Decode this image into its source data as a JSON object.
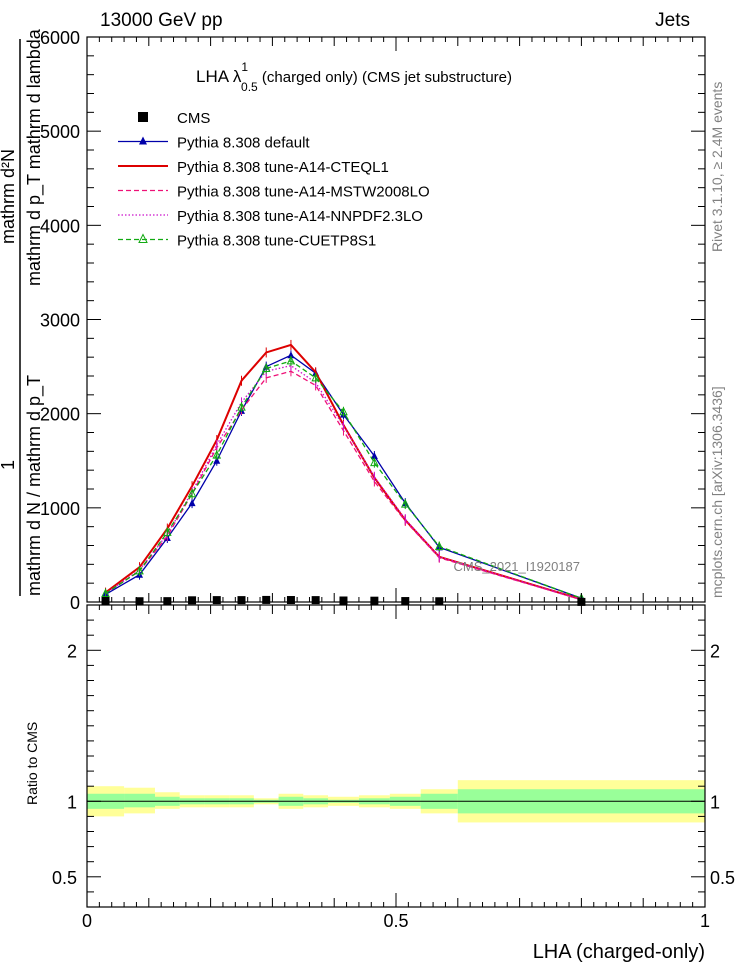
{
  "header": {
    "energy_label": "13000 GeV pp",
    "process_label": "Jets",
    "side_top": "Rivet 3.1.10, ≥ 2.4M events",
    "side_bottom": "mcplots.cern.ch [arXiv:1306.3436]",
    "watermark": "CMS_2021_I1920187"
  },
  "title": {
    "main": "LHA λ",
    "sup": "1",
    "sub": "0.5",
    "rest": " (charged only) (CMS jet substructure)"
  },
  "axes": {
    "ylabel_top": "mathrm d²N",
    "ylabel_top_extra": "mathrm d p_T mathrm d lambda",
    "ylabel_num": "1",
    "ylabel_bottom": "mathrm d N / mathrm d p_T",
    "ratio_ylabel": "Ratio to CMS",
    "xlabel": "LHA (charged-only)"
  },
  "legend": [
    {
      "label": "CMS",
      "color": "#000000",
      "marker": "square",
      "dash": "none"
    },
    {
      "label": "Pythia 8.308 default",
      "color": "#0000aa",
      "marker": "triangle",
      "dash": "none"
    },
    {
      "label": "Pythia 8.308 tune-A14-CTEQL1",
      "color": "#dd0000",
      "marker": "none",
      "dash": "none"
    },
    {
      "label": "Pythia 8.308 tune-A14-MSTW2008LO",
      "color": "#ee1177",
      "marker": "none",
      "dash": "dashed"
    },
    {
      "label": "Pythia 8.308 tune-A14-NNPDF2.3LO",
      "color": "#cc11cc",
      "marker": "none",
      "dash": "dotted"
    },
    {
      "label": "Pythia 8.308 tune-CUETP8S1",
      "color": "#11aa11",
      "marker": "opentriangle",
      "dash": "dashed"
    }
  ],
  "chart_data": [
    {
      "type": "line",
      "panel": "main",
      "xlim": [
        0,
        1
      ],
      "ylim": [
        0,
        6000
      ],
      "x_ticks": [
        "0",
        "0.5",
        "1"
      ],
      "y_ticks": [
        "0",
        "1000",
        "2000",
        "3000",
        "4000",
        "5000",
        "6000"
      ],
      "bins": [
        [
          0,
          0.06
        ],
        [
          0.06,
          0.11
        ],
        [
          0.11,
          0.15
        ],
        [
          0.15,
          0.19
        ],
        [
          0.19,
          0.23
        ],
        [
          0.23,
          0.27
        ],
        [
          0.27,
          0.31
        ],
        [
          0.31,
          0.35
        ],
        [
          0.35,
          0.39
        ],
        [
          0.39,
          0.44
        ],
        [
          0.44,
          0.49
        ],
        [
          0.49,
          0.54
        ],
        [
          0.54,
          0.6
        ],
        [
          0.6,
          1.0
        ]
      ],
      "series": [
        {
          "name": "CMS",
          "values": [
            11,
            8,
            9,
            18,
            20,
            20,
            22,
            21,
            20,
            16,
            14,
            10,
            8,
            1
          ]
        },
        {
          "name": "Pythia 8.308 default",
          "values": [
            80,
            290,
            680,
            1050,
            1500,
            2030,
            2500,
            2620,
            2430,
            1990,
            1550,
            1050,
            580,
            40
          ]
        },
        {
          "name": "Pythia 8.308 tune-A14-CTEQL1",
          "values": [
            100,
            370,
            780,
            1230,
            1720,
            2350,
            2650,
            2730,
            2440,
            1880,
            1320,
            870,
            480,
            28
          ]
        },
        {
          "name": "Pythia 8.308 tune-A14-MSTW2008LO",
          "values": [
            90,
            330,
            700,
            1150,
            1640,
            2040,
            2380,
            2450,
            2300,
            1820,
            1280,
            860,
            470,
            25
          ]
        },
        {
          "name": "Pythia 8.308 tune-A14-NNPDF2.3LO",
          "values": [
            90,
            340,
            720,
            1170,
            1670,
            2120,
            2450,
            2510,
            2330,
            1870,
            1330,
            880,
            480,
            26
          ]
        },
        {
          "name": "Pythia 8.308 tune-CUETP8S1",
          "values": [
            90,
            330,
            740,
            1150,
            1560,
            2070,
            2480,
            2560,
            2380,
            2020,
            1480,
            1040,
            590,
            40
          ]
        }
      ]
    },
    {
      "type": "area",
      "panel": "ratio",
      "xlim": [
        0,
        1
      ],
      "ylim": [
        0.3,
        2.3
      ],
      "y_ticks": [
        "0.5",
        "1",
        "2"
      ],
      "bins": [
        [
          0,
          0.06
        ],
        [
          0.06,
          0.11
        ],
        [
          0.11,
          0.15
        ],
        [
          0.15,
          0.19
        ],
        [
          0.19,
          0.23
        ],
        [
          0.23,
          0.27
        ],
        [
          0.27,
          0.31
        ],
        [
          0.31,
          0.35
        ],
        [
          0.35,
          0.39
        ],
        [
          0.39,
          0.44
        ],
        [
          0.44,
          0.49
        ],
        [
          0.49,
          0.54
        ],
        [
          0.54,
          0.6
        ],
        [
          0.6,
          1.0
        ]
      ],
      "stat_band": [
        [
          0.95,
          1.05
        ],
        [
          0.96,
          1.05
        ],
        [
          0.97,
          1.03
        ],
        [
          0.98,
          1.02
        ],
        [
          0.98,
          1.02
        ],
        [
          0.98,
          1.02
        ],
        [
          0.99,
          1.01
        ],
        [
          0.97,
          1.03
        ],
        [
          0.98,
          1.02
        ],
        [
          0.99,
          1.01
        ],
        [
          0.98,
          1.02
        ],
        [
          0.97,
          1.03
        ],
        [
          0.95,
          1.05
        ],
        [
          0.92,
          1.08
        ]
      ],
      "total_band": [
        [
          0.9,
          1.1
        ],
        [
          0.92,
          1.09
        ],
        [
          0.95,
          1.06
        ],
        [
          0.96,
          1.04
        ],
        [
          0.96,
          1.04
        ],
        [
          0.96,
          1.04
        ],
        [
          0.98,
          1.02
        ],
        [
          0.95,
          1.05
        ],
        [
          0.96,
          1.04
        ],
        [
          0.97,
          1.03
        ],
        [
          0.96,
          1.04
        ],
        [
          0.95,
          1.05
        ],
        [
          0.92,
          1.08
        ],
        [
          0.86,
          1.14
        ]
      ],
      "band_colors": {
        "total": "#ffff99",
        "stat": "#99ff99"
      }
    }
  ]
}
